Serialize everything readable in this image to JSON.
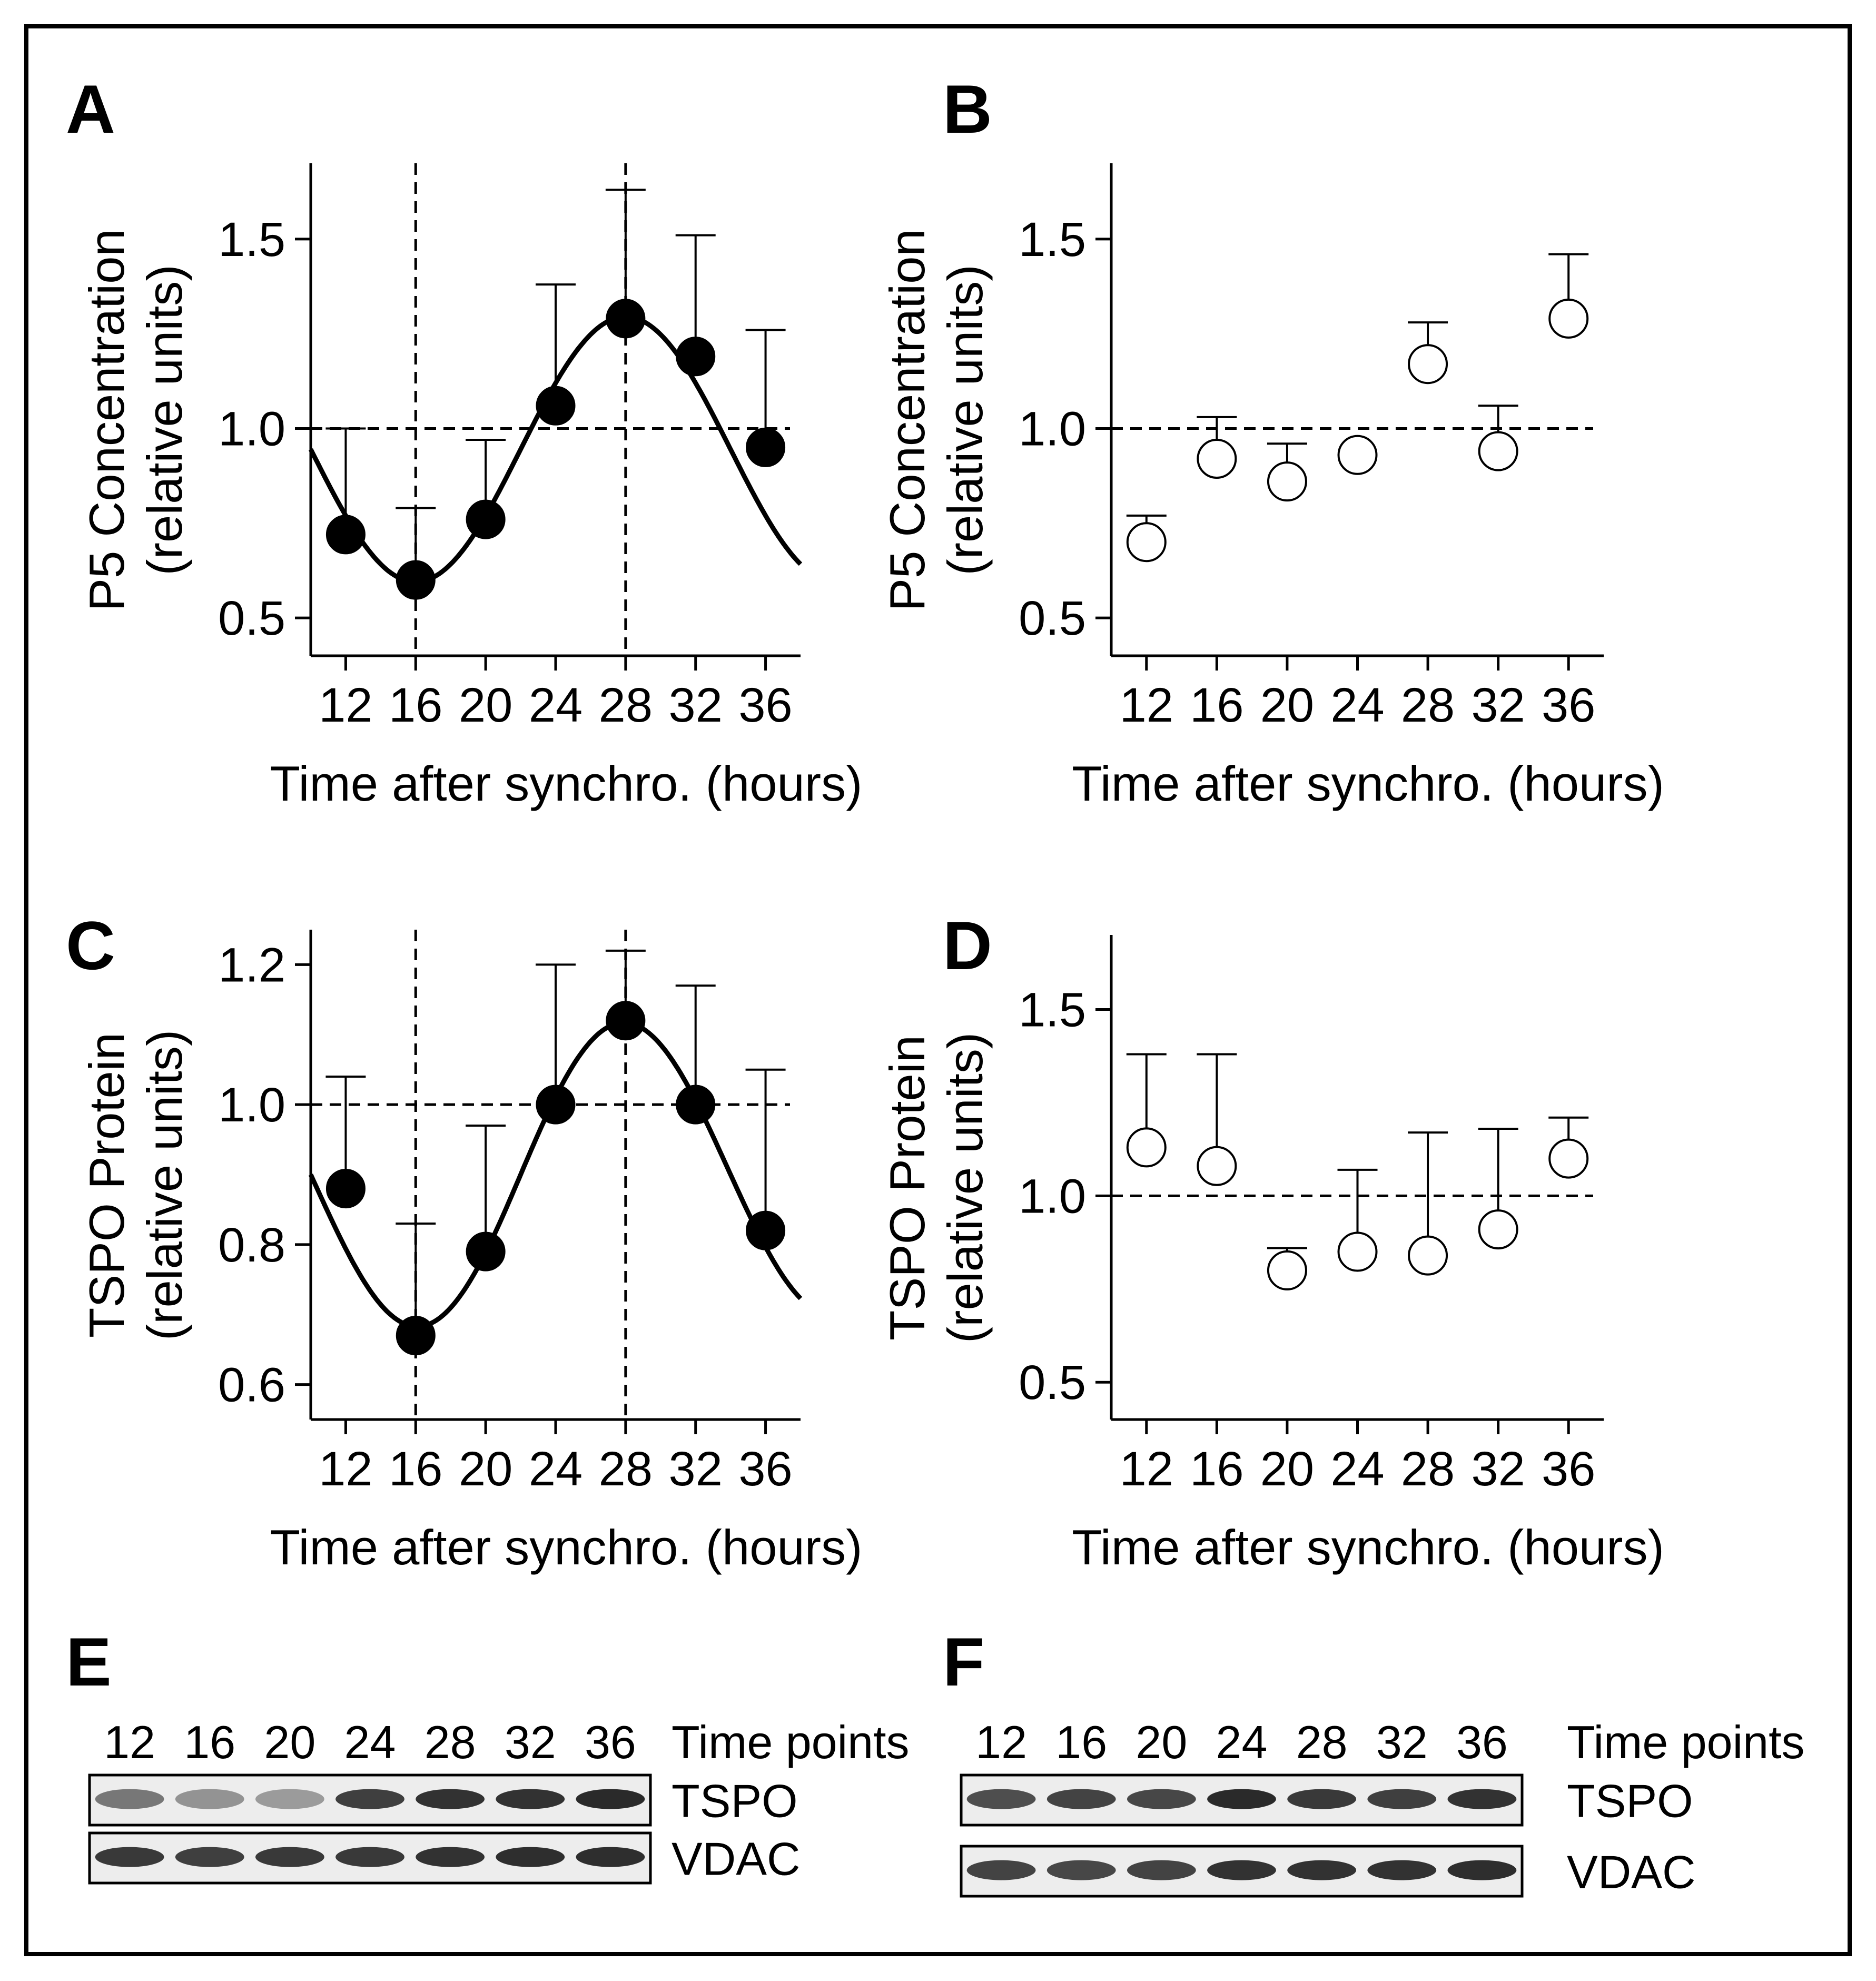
{
  "chart_data": [
    {
      "panel": "A",
      "type": "scatter",
      "xlabel": "Time after synchro. (hours)",
      "ylabel": [
        "P5 Concentration",
        "(relative units)"
      ],
      "x": [
        12,
        16,
        20,
        24,
        28,
        32,
        36
      ],
      "y": [
        0.72,
        0.6,
        0.76,
        1.06,
        1.29,
        1.19,
        0.95
      ],
      "error_upper": [
        1.0,
        0.79,
        0.97,
        1.38,
        1.63,
        1.51,
        1.26
      ],
      "xlim": [
        10,
        38
      ],
      "ylim": [
        0.4,
        1.7
      ],
      "yticks": [
        0.5,
        1.0,
        1.5
      ],
      "ytick_labels": [
        "0.5",
        "1.0",
        "1.5"
      ],
      "xticks": [
        12,
        16,
        20,
        24,
        28,
        32,
        36
      ],
      "xtick_labels": [
        "12",
        "16",
        "20",
        "24",
        "28",
        "32",
        "36"
      ],
      "marker": "filled",
      "fit_curve": {
        "mesor": 0.945,
        "amplitude": 0.35,
        "period": 24,
        "trough_x": 16
      },
      "reference_hline": 1.0,
      "reference_vlines": [
        16,
        28
      ]
    },
    {
      "panel": "B",
      "type": "scatter",
      "xlabel": "Time after synchro. (hours)",
      "ylabel": [
        "P5 Concentration",
        "(relative units)"
      ],
      "x": [
        12,
        16,
        20,
        24,
        28,
        32,
        36
      ],
      "y": [
        0.7,
        0.92,
        0.86,
        0.93,
        1.17,
        0.94,
        1.29
      ],
      "error_upper": [
        0.77,
        1.03,
        0.96,
        0.93,
        1.28,
        1.06,
        1.46
      ],
      "xlim": [
        10,
        38
      ],
      "ylim": [
        0.4,
        1.7
      ],
      "yticks": [
        0.5,
        1.0,
        1.5
      ],
      "ytick_labels": [
        "0.5",
        "1.0",
        "1.5"
      ],
      "xticks": [
        12,
        16,
        20,
        24,
        28,
        32,
        36
      ],
      "xtick_labels": [
        "12",
        "16",
        "20",
        "24",
        "28",
        "32",
        "36"
      ],
      "marker": "open",
      "reference_hline": 1.0,
      "reference_vlines": []
    },
    {
      "panel": "C",
      "type": "scatter",
      "xlabel": "Time after synchro. (hours)",
      "ylabel": [
        "TSPO Protein",
        "(relative units)"
      ],
      "x": [
        12,
        16,
        20,
        24,
        28,
        32,
        36
      ],
      "y": [
        0.88,
        0.67,
        0.79,
        1.0,
        1.12,
        1.0,
        0.82
      ],
      "error_upper": [
        1.04,
        0.83,
        0.97,
        1.2,
        1.22,
        1.17,
        1.05
      ],
      "xlim": [
        10,
        38
      ],
      "ylim": [
        0.55,
        1.25
      ],
      "yticks": [
        0.6,
        0.8,
        1.0,
        1.2
      ],
      "ytick_labels": [
        "0.6",
        "0.8",
        "1.0",
        "1.2"
      ],
      "xticks": [
        12,
        16,
        20,
        24,
        28,
        32,
        36
      ],
      "xtick_labels": [
        "12",
        "16",
        "20",
        "24",
        "28",
        "32",
        "36"
      ],
      "marker": "filled",
      "fit_curve": {
        "mesor": 0.9,
        "amplitude": 0.225,
        "period": 24,
        "trough_x": 16,
        "damping": 0.06
      },
      "reference_hline": 1.0,
      "reference_vlines": [
        16,
        28
      ]
    },
    {
      "panel": "D",
      "type": "scatter",
      "xlabel": "Time after synchro. (hours)",
      "ylabel": [
        "TSPO Protein",
        "(relative units)"
      ],
      "x": [
        12,
        16,
        20,
        24,
        28,
        32,
        36
      ],
      "y": [
        1.13,
        1.08,
        0.8,
        0.85,
        0.84,
        0.91,
        1.1
      ],
      "error_upper": [
        1.38,
        1.38,
        0.86,
        1.07,
        1.17,
        1.18,
        1.21
      ],
      "xlim": [
        10,
        38
      ],
      "ylim": [
        0.4,
        1.7
      ],
      "yticks": [
        0.5,
        1.0,
        1.5
      ],
      "ytick_labels": [
        "0.5",
        "1.0",
        "1.5"
      ],
      "xticks": [
        12,
        16,
        20,
        24,
        28,
        32,
        36
      ],
      "xtick_labels": [
        "12",
        "16",
        "20",
        "24",
        "28",
        "32",
        "36"
      ],
      "marker": "open",
      "reference_hline": 1.0,
      "reference_vlines": []
    }
  ],
  "blots": [
    {
      "panel": "E",
      "lanes": [
        "12",
        "16",
        "20",
        "24",
        "28",
        "32",
        "36"
      ],
      "header": "Time points",
      "rows": [
        {
          "label": "TSPO",
          "intensity": [
            0.55,
            0.42,
            0.38,
            0.82,
            0.88,
            0.88,
            0.92
          ]
        },
        {
          "label": "VDAC",
          "intensity": [
            0.85,
            0.82,
            0.85,
            0.85,
            0.88,
            0.9,
            0.9
          ]
        }
      ]
    },
    {
      "panel": "F",
      "lanes": [
        "12",
        "16",
        "20",
        "24",
        "28",
        "32",
        "36"
      ],
      "header": "Time points",
      "rows": [
        {
          "label": "TSPO",
          "intensity": [
            0.75,
            0.8,
            0.78,
            0.92,
            0.85,
            0.82,
            0.88
          ]
        },
        {
          "label": "VDAC",
          "intensity": [
            0.8,
            0.78,
            0.8,
            0.88,
            0.88,
            0.88,
            0.9
          ]
        }
      ]
    }
  ]
}
